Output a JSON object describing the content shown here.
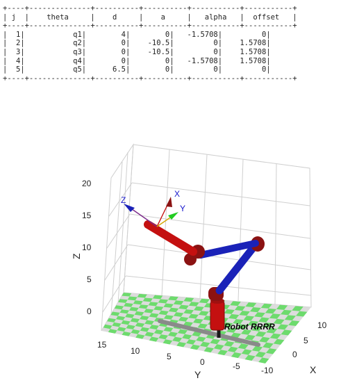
{
  "dh_table": {
    "headers": [
      "j",
      "theta",
      "d",
      "a",
      "alpha",
      "offset"
    ],
    "rows": [
      [
        "1",
        "q1",
        "4",
        "0",
        "-1.5708",
        "0"
      ],
      [
        "2",
        "q2",
        "0",
        "-10.5",
        "0",
        "1.5708"
      ],
      [
        "3",
        "q3",
        "0",
        "-10.5",
        "0",
        "1.5708"
      ],
      [
        "4",
        "q4",
        "0",
        "0",
        "-1.5708",
        "1.5708"
      ],
      [
        "5",
        "q5",
        "6.5",
        "0",
        "0",
        "0"
      ]
    ]
  },
  "plot": {
    "robot_name": "Robot RRRR",
    "axes": {
      "x_label": "X",
      "y_label": "Y",
      "z_label": "Z",
      "x_ticks": [
        "10",
        "5",
        "0",
        "-10"
      ],
      "y_ticks": [
        "15",
        "10",
        "5",
        "0",
        "-5"
      ],
      "z_ticks": [
        "20",
        "15",
        "10",
        "5",
        "0"
      ]
    },
    "frame_labels": {
      "x": "X",
      "y": "Y",
      "z": "Z"
    },
    "colors": {
      "links_red": "#c41010",
      "links_blue": "#1a22b8",
      "joints": "#8b1212",
      "floor_green": "#6ddb6d",
      "floor_gray": "#dcdcdc",
      "grid": "#d0d0d0"
    }
  }
}
